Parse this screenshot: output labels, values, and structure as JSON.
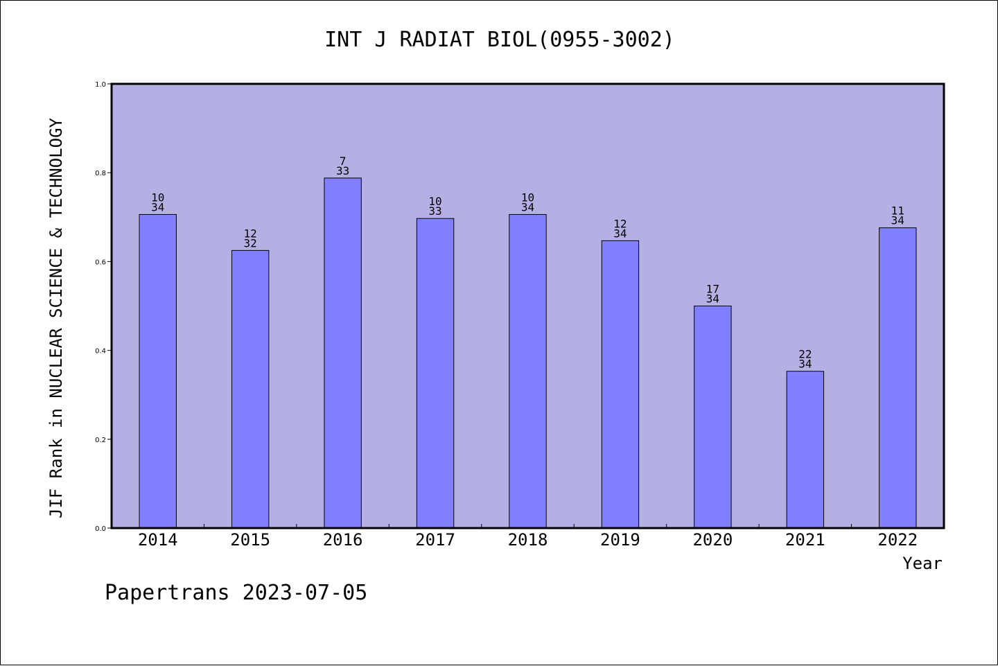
{
  "chart_data": {
    "type": "bar",
    "title": "INT J RADIAT BIOL(0955-3002)",
    "xlabel": "Year",
    "ylabel": "JIF Rank in NUCLEAR SCIENCE & TECHNOLOGY",
    "categories": [
      "2014",
      "2015",
      "2016",
      "2017",
      "2018",
      "2019",
      "2020",
      "2021",
      "2022"
    ],
    "values": [
      0.706,
      0.625,
      0.788,
      0.697,
      0.706,
      0.647,
      0.5,
      0.353,
      0.676
    ],
    "rank_labels": [
      [
        "10",
        "34"
      ],
      [
        "12",
        "32"
      ],
      [
        "7",
        "33"
      ],
      [
        "10",
        "33"
      ],
      [
        "10",
        "34"
      ],
      [
        "12",
        "34"
      ],
      [
        "17",
        "34"
      ],
      [
        "22",
        "34"
      ],
      [
        "11",
        "34"
      ]
    ],
    "ylim": [
      0,
      1.0
    ],
    "yticks": [
      "0.0",
      "0.2",
      "0.4",
      "0.6",
      "0.8",
      "1.0"
    ],
    "grid": false,
    "legend": "none",
    "colors": {
      "plot_background": "#b5b0e3",
      "bar_fill": "#8080ff",
      "bar_stroke": "#000000",
      "axis": "#000000"
    }
  },
  "footer": "Papertrans 2023-07-05"
}
